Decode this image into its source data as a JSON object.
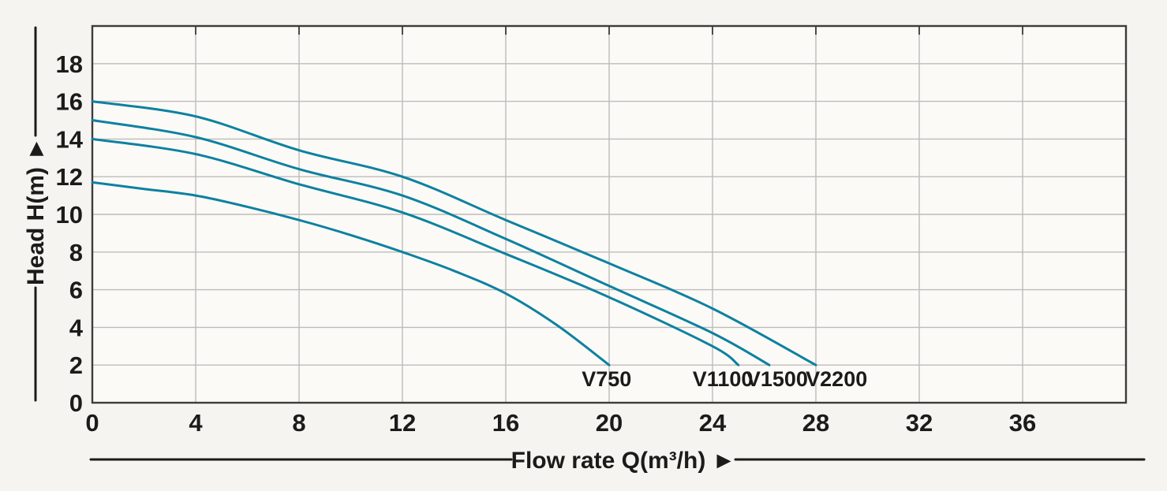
{
  "chart_data": {
    "type": "line",
    "title": "",
    "xlabel": "Flow rate Q(m³/h)",
    "ylabel": "Head H(m)",
    "axis_arrow": "►",
    "xlim": [
      0,
      40
    ],
    "ylim": [
      0,
      20
    ],
    "x_ticks": [
      0,
      4,
      8,
      12,
      16,
      20,
      24,
      28,
      32,
      36
    ],
    "y_ticks": [
      0,
      2,
      4,
      6,
      8,
      10,
      12,
      14,
      16,
      18
    ],
    "grid": true,
    "legend_position": "labels-inline-at-curve-ends",
    "series": [
      {
        "name": "V750",
        "points": [
          [
            0,
            11.7
          ],
          [
            2,
            11.35
          ],
          [
            4,
            11.0
          ],
          [
            6,
            10.4
          ],
          [
            8,
            9.7
          ],
          [
            10,
            8.9
          ],
          [
            12,
            8.0
          ],
          [
            14,
            7.0
          ],
          [
            16,
            5.8
          ],
          [
            18,
            4.1
          ],
          [
            20,
            2.0
          ]
        ],
        "label_x": 19.9,
        "label_y": 1.25
      },
      {
        "name": "V1100",
        "points": [
          [
            0,
            14.0
          ],
          [
            4,
            13.2
          ],
          [
            8,
            11.6
          ],
          [
            12,
            10.1
          ],
          [
            16,
            7.9
          ],
          [
            20,
            5.6
          ],
          [
            24,
            3.0
          ],
          [
            25,
            2.0
          ]
        ],
        "label_x": 24.4,
        "label_y": 1.25
      },
      {
        "name": "V1500",
        "points": [
          [
            0,
            15.0
          ],
          [
            4,
            14.1
          ],
          [
            8,
            12.4
          ],
          [
            12,
            11.0
          ],
          [
            16,
            8.7
          ],
          [
            20,
            6.2
          ],
          [
            24,
            3.7
          ],
          [
            26.2,
            2.0
          ]
        ],
        "label_x": 26.5,
        "label_y": 1.25
      },
      {
        "name": "V2200",
        "points": [
          [
            0,
            16.0
          ],
          [
            4,
            15.2
          ],
          [
            8,
            13.4
          ],
          [
            12,
            12.0
          ],
          [
            16,
            9.7
          ],
          [
            20,
            7.4
          ],
          [
            24,
            5.0
          ],
          [
            28,
            2.0
          ]
        ],
        "label_x": 28.8,
        "label_y": 1.25
      }
    ],
    "colors": {
      "curve": "#0d81a0",
      "grid": "#bdbcba",
      "border": "#3e3c3a",
      "text": "#1c1b19",
      "background": "#f6f4f1",
      "plot_background": "#fbfaf7"
    }
  }
}
